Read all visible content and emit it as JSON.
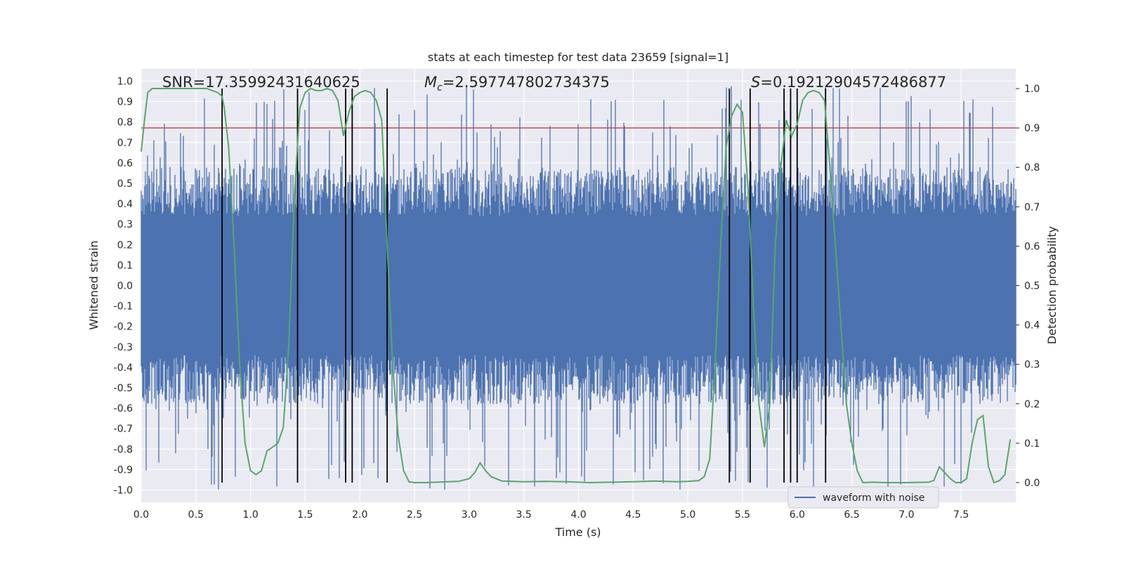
{
  "chart_data": {
    "type": "line",
    "title": "stats at each timestep for test data 23659 [signal=1]",
    "xlabel": "Time (s)",
    "ylabel_left": "Whitened strain",
    "ylabel_right": "Detection probability",
    "xlim": [
      0,
      8
    ],
    "ylim_left": [
      -1.06,
      1.06
    ],
    "ylim_right": [
      -0.05,
      1.05
    ],
    "x_ticks": [
      "0.0",
      "0.5",
      "1.0",
      "1.5",
      "2.0",
      "2.5",
      "3.0",
      "3.5",
      "4.0",
      "4.5",
      "5.0",
      "5.5",
      "6.0",
      "6.5",
      "7.0",
      "7.5"
    ],
    "y_left_ticks": [
      "1.0",
      "0.9",
      "0.8",
      "0.7",
      "0.6",
      "0.5",
      "0.4",
      "0.3",
      "0.2",
      "0.1",
      "0.0",
      "-0.1",
      "-0.2",
      "-0.3",
      "-0.4",
      "-0.5",
      "-0.6",
      "-0.7",
      "-0.8",
      "-0.9",
      "-1.0"
    ],
    "y_right_ticks": [
      "1.0",
      "0.9",
      "0.8",
      "0.7",
      "0.6",
      "0.5",
      "0.4",
      "0.3",
      "0.2",
      "0.1",
      "0.0"
    ],
    "annotations": {
      "snr": "SNR=17.35992431640625",
      "mc_symbol": "M",
      "mc_sub": "c",
      "mc_value": "=2.597747802734375",
      "s_symbol": "S",
      "s_value": "=0.19212904572486877"
    },
    "legend": {
      "label": "waveform with noise",
      "placement": "bottom-right"
    },
    "grid": true,
    "threshold": {
      "axis": "right",
      "value": 0.9,
      "color": "#c44e52"
    },
    "event_lines": {
      "x": [
        0.74,
        1.43,
        1.87,
        1.93,
        2.25,
        5.38,
        5.57,
        5.88,
        5.94,
        6.0,
        6.26
      ],
      "color": "#000000"
    },
    "series": [
      {
        "name": "waveform with noise",
        "axis": "left",
        "color": "#4c72b0",
        "envelope": {
          "typical_upper": 0.4,
          "typical_lower": -0.4,
          "max": 0.98,
          "min": -1.0
        }
      },
      {
        "axis": "right",
        "color": "#55a868",
        "x": [
          0.0,
          0.03,
          0.06,
          0.1,
          0.15,
          0.2,
          0.3,
          0.4,
          0.5,
          0.6,
          0.65,
          0.7,
          0.74,
          0.76,
          0.8,
          0.85,
          0.9,
          0.95,
          1.0,
          1.05,
          1.1,
          1.15,
          1.2,
          1.25,
          1.3,
          1.35,
          1.4,
          1.45,
          1.5,
          1.55,
          1.6,
          1.65,
          1.7,
          1.75,
          1.8,
          1.85,
          1.9,
          1.95,
          2.0,
          2.05,
          2.1,
          2.15,
          2.2,
          2.25,
          2.3,
          2.35,
          2.4,
          2.45,
          2.5,
          2.55,
          2.6,
          2.7,
          2.8,
          2.9,
          3.0,
          3.05,
          3.1,
          3.15,
          3.2,
          3.3,
          3.5,
          3.7,
          3.9,
          4.1,
          4.3,
          4.5,
          4.7,
          4.9,
          5.0,
          5.1,
          5.15,
          5.2,
          5.25,
          5.3,
          5.35,
          5.4,
          5.45,
          5.5,
          5.55,
          5.6,
          5.65,
          5.7,
          5.75,
          5.8,
          5.85,
          5.9,
          5.95,
          6.0,
          6.05,
          6.1,
          6.15,
          6.2,
          6.25,
          6.3,
          6.35,
          6.4,
          6.45,
          6.5,
          6.55,
          6.6,
          6.7,
          6.8,
          7.0,
          7.2,
          7.25,
          7.3,
          7.4,
          7.45,
          7.5,
          7.55,
          7.6,
          7.65,
          7.7,
          7.75,
          7.8,
          7.85,
          7.9,
          7.95
        ],
        "values": [
          0.84,
          0.92,
          0.99,
          1.0,
          1.0,
          1.0,
          1.0,
          1.0,
          1.0,
          1.0,
          0.995,
          0.99,
          0.98,
          0.95,
          0.85,
          0.6,
          0.3,
          0.1,
          0.03,
          0.02,
          0.03,
          0.08,
          0.09,
          0.1,
          0.14,
          0.35,
          0.72,
          0.95,
          0.99,
          1.0,
          0.995,
          0.995,
          1.0,
          0.995,
          0.97,
          0.88,
          0.94,
          0.98,
          0.99,
          0.995,
          0.99,
          0.97,
          0.92,
          0.6,
          0.3,
          0.12,
          0.03,
          0.002,
          0.0,
          0.0,
          0.0,
          0.001,
          0.002,
          0.003,
          0.01,
          0.025,
          0.05,
          0.03,
          0.015,
          0.004,
          0.002,
          0.003,
          0.002,
          0.0,
          0.001,
          0.002,
          0.004,
          0.002,
          0.003,
          0.005,
          0.015,
          0.06,
          0.3,
          0.6,
          0.85,
          0.93,
          0.96,
          0.94,
          0.75,
          0.45,
          0.2,
          0.09,
          0.2,
          0.6,
          0.8,
          0.92,
          0.88,
          0.91,
          0.97,
          0.99,
          0.995,
          0.99,
          0.97,
          0.8,
          0.6,
          0.4,
          0.2,
          0.1,
          0.03,
          0.0,
          0.001,
          0.0,
          0.0,
          0.001,
          0.005,
          0.04,
          0.01,
          0.0,
          0.0,
          0.01,
          0.1,
          0.16,
          0.17,
          0.04,
          0.0,
          0.005,
          0.02,
          0.11
        ]
      }
    ]
  }
}
